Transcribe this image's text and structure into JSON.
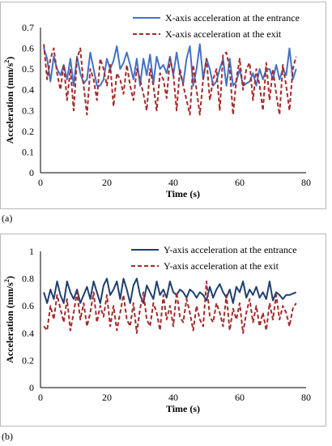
{
  "chart_data": [
    {
      "type": "line",
      "panel_label": "(a)",
      "xlabel": "Time (s)",
      "ylabel": "Acceleration (mm/s²)",
      "ylabel_main": "Acceleration (mm/s",
      "ylabel_sup": "2",
      "ylabel_close": ")",
      "xlim": [
        0,
        80
      ],
      "ylim": [
        0,
        0.7
      ],
      "xticks": [
        0,
        20,
        40,
        60,
        80
      ],
      "yticks": [
        0,
        0.1,
        0.2,
        0.3,
        0.4,
        0.5,
        0.6,
        0.7
      ],
      "xtick_labels": [
        "0",
        "20",
        "40",
        "60",
        "80"
      ],
      "ytick_labels": [
        "0",
        "0.1",
        "0.2",
        "0.3",
        "0.4",
        "0.5",
        "0.6",
        "0.7"
      ],
      "legend_position": "top-right",
      "series": [
        {
          "name": "X-axis acceleration at the entrance",
          "color": "#4472C4",
          "style": "solid",
          "x": [
            1,
            2,
            3,
            4,
            5,
            6,
            7,
            8,
            9,
            10,
            11,
            12,
            13,
            14,
            15,
            16,
            17,
            18,
            19,
            20,
            21,
            22,
            23,
            24,
            25,
            26,
            27,
            28,
            29,
            30,
            31,
            32,
            33,
            34,
            35,
            36,
            37,
            38,
            39,
            40,
            41,
            42,
            43,
            44,
            45,
            46,
            47,
            48,
            49,
            50,
            51,
            52,
            53,
            54,
            55,
            56,
            57,
            58,
            59,
            60,
            61,
            62,
            63,
            64,
            65,
            66,
            67,
            68,
            69,
            70,
            71,
            72,
            73,
            74,
            75,
            76,
            77
          ],
          "y": [
            0.6,
            0.55,
            0.44,
            0.56,
            0.5,
            0.47,
            0.52,
            0.45,
            0.55,
            0.42,
            0.56,
            0.48,
            0.43,
            0.45,
            0.58,
            0.5,
            0.42,
            0.42,
            0.45,
            0.55,
            0.5,
            0.54,
            0.61,
            0.5,
            0.53,
            0.58,
            0.52,
            0.45,
            0.55,
            0.42,
            0.55,
            0.47,
            0.57,
            0.43,
            0.56,
            0.5,
            0.52,
            0.48,
            0.56,
            0.47,
            0.58,
            0.48,
            0.43,
            0.55,
            0.61,
            0.42,
            0.5,
            0.62,
            0.45,
            0.55,
            0.5,
            0.42,
            0.44,
            0.5,
            0.55,
            0.42,
            0.55,
            0.42,
            0.44,
            0.5,
            0.42,
            0.43,
            0.44,
            0.48,
            0.42,
            0.5,
            0.45,
            0.5,
            0.5,
            0.45,
            0.52,
            0.45,
            0.5,
            0.47,
            0.6,
            0.45,
            0.5
          ]
        },
        {
          "name": "X-axis acceleration at the exit",
          "color": "#A52A2A",
          "style": "dashed",
          "x": [
            1,
            2,
            3,
            4,
            5,
            6,
            7,
            8,
            9,
            10,
            11,
            12,
            13,
            14,
            15,
            16,
            17,
            18,
            19,
            20,
            21,
            22,
            23,
            24,
            25,
            26,
            27,
            28,
            29,
            30,
            31,
            32,
            33,
            34,
            35,
            36,
            37,
            38,
            39,
            40,
            41,
            42,
            43,
            44,
            45,
            46,
            47,
            48,
            49,
            50,
            51,
            52,
            53,
            54,
            55,
            56,
            57,
            58,
            59,
            60,
            61,
            62,
            63,
            64,
            65,
            66,
            67,
            68,
            69,
            70,
            71,
            72,
            73,
            74,
            75,
            76,
            77
          ],
          "y": [
            0.62,
            0.45,
            0.55,
            0.6,
            0.48,
            0.4,
            0.52,
            0.35,
            0.5,
            0.3,
            0.55,
            0.6,
            0.42,
            0.28,
            0.5,
            0.45,
            0.35,
            0.55,
            0.5,
            0.42,
            0.52,
            0.32,
            0.48,
            0.45,
            0.38,
            0.52,
            0.42,
            0.35,
            0.5,
            0.45,
            0.38,
            0.3,
            0.5,
            0.42,
            0.3,
            0.48,
            0.45,
            0.36,
            0.55,
            0.48,
            0.3,
            0.5,
            0.42,
            0.35,
            0.28,
            0.52,
            0.4,
            0.28,
            0.45,
            0.55,
            0.35,
            0.45,
            0.5,
            0.3,
            0.57,
            0.58,
            0.5,
            0.28,
            0.45,
            0.55,
            0.4,
            0.5,
            0.53,
            0.35,
            0.5,
            0.42,
            0.3,
            0.53,
            0.35,
            0.5,
            0.38,
            0.28,
            0.52,
            0.42,
            0.3,
            0.5,
            0.56
          ]
        }
      ]
    },
    {
      "type": "line",
      "panel_label": "(b)",
      "xlabel": "Time (s)",
      "ylabel": "Acceleration (mm/s²)",
      "ylabel_main": "Acceleration (mm/s",
      "ylabel_sup": "2",
      "ylabel_close": ")",
      "xlim": [
        0,
        80
      ],
      "ylim": [
        0,
        1
      ],
      "xticks": [
        0,
        20,
        40,
        60,
        80
      ],
      "yticks": [
        0,
        0.2,
        0.4,
        0.6,
        0.8,
        1
      ],
      "xtick_labels": [
        "0",
        "20",
        "40",
        "60",
        "80"
      ],
      "ytick_labels": [
        "0",
        "0.2",
        "0.4",
        "0.6",
        "0.8",
        "1"
      ],
      "legend_position": "top-right",
      "series": [
        {
          "name": "Y-axis acceleration at the entrance",
          "color": "#1F3F6E",
          "style": "solid",
          "x": [
            1,
            2,
            3,
            4,
            5,
            6,
            7,
            8,
            9,
            10,
            11,
            12,
            13,
            14,
            15,
            16,
            17,
            18,
            19,
            20,
            21,
            22,
            23,
            24,
            25,
            26,
            27,
            28,
            29,
            30,
            31,
            32,
            33,
            34,
            35,
            36,
            37,
            38,
            39,
            40,
            41,
            42,
            43,
            44,
            45,
            46,
            47,
            48,
            49,
            50,
            51,
            52,
            53,
            54,
            55,
            56,
            57,
            58,
            59,
            60,
            61,
            62,
            63,
            64,
            65,
            66,
            67,
            68,
            69,
            70,
            71,
            72,
            73,
            74,
            75,
            76,
            77
          ],
          "y": [
            0.7,
            0.62,
            0.72,
            0.65,
            0.78,
            0.68,
            0.62,
            0.78,
            0.7,
            0.65,
            0.72,
            0.62,
            0.68,
            0.74,
            0.65,
            0.78,
            0.7,
            0.62,
            0.75,
            0.8,
            0.68,
            0.72,
            0.78,
            0.65,
            0.8,
            0.72,
            0.62,
            0.75,
            0.8,
            0.68,
            0.62,
            0.75,
            0.7,
            0.65,
            0.78,
            0.68,
            0.72,
            0.66,
            0.78,
            0.7,
            0.68,
            0.72,
            0.7,
            0.66,
            0.72,
            0.7,
            0.66,
            0.7,
            0.68,
            0.64,
            0.74,
            0.66,
            0.72,
            0.76,
            0.7,
            0.66,
            0.72,
            0.62,
            0.74,
            0.7,
            0.78,
            0.66,
            0.72,
            0.68,
            0.74,
            0.66,
            0.7,
            0.65,
            0.78,
            0.64,
            0.7,
            0.68,
            0.65,
            0.68,
            0.68,
            0.69,
            0.7
          ]
        },
        {
          "name": "Y-axis acceleration at the exit",
          "color": "#A52A2A",
          "style": "dashed",
          "x": [
            1,
            2,
            3,
            4,
            5,
            6,
            7,
            8,
            9,
            10,
            11,
            12,
            13,
            14,
            15,
            16,
            17,
            18,
            19,
            20,
            21,
            22,
            23,
            24,
            25,
            26,
            27,
            28,
            29,
            30,
            31,
            32,
            33,
            34,
            35,
            36,
            37,
            38,
            39,
            40,
            41,
            42,
            43,
            44,
            45,
            46,
            47,
            48,
            49,
            50,
            51,
            52,
            53,
            54,
            55,
            56,
            57,
            58,
            59,
            60,
            61,
            62,
            63,
            64,
            65,
            66,
            67,
            68,
            69,
            70,
            71,
            72,
            73,
            74,
            75,
            76,
            77
          ],
          "y": [
            0.45,
            0.42,
            0.6,
            0.5,
            0.68,
            0.58,
            0.48,
            0.65,
            0.42,
            0.55,
            0.7,
            0.5,
            0.62,
            0.45,
            0.55,
            0.7,
            0.48,
            0.6,
            0.52,
            0.68,
            0.45,
            0.6,
            0.42,
            0.55,
            0.68,
            0.5,
            0.45,
            0.62,
            0.4,
            0.58,
            0.7,
            0.5,
            0.45,
            0.62,
            0.55,
            0.42,
            0.68,
            0.5,
            0.6,
            0.45,
            0.7,
            0.52,
            0.48,
            0.65,
            0.55,
            0.42,
            0.6,
            0.5,
            0.45,
            0.78,
            0.52,
            0.48,
            0.62,
            0.55,
            0.45,
            0.68,
            0.42,
            0.58,
            0.5,
            0.62,
            0.4,
            0.55,
            0.65,
            0.48,
            0.6,
            0.45,
            0.55,
            0.42,
            0.62,
            0.5,
            0.68,
            0.5,
            0.6,
            0.55,
            0.45,
            0.58,
            0.62
          ]
        }
      ]
    }
  ]
}
